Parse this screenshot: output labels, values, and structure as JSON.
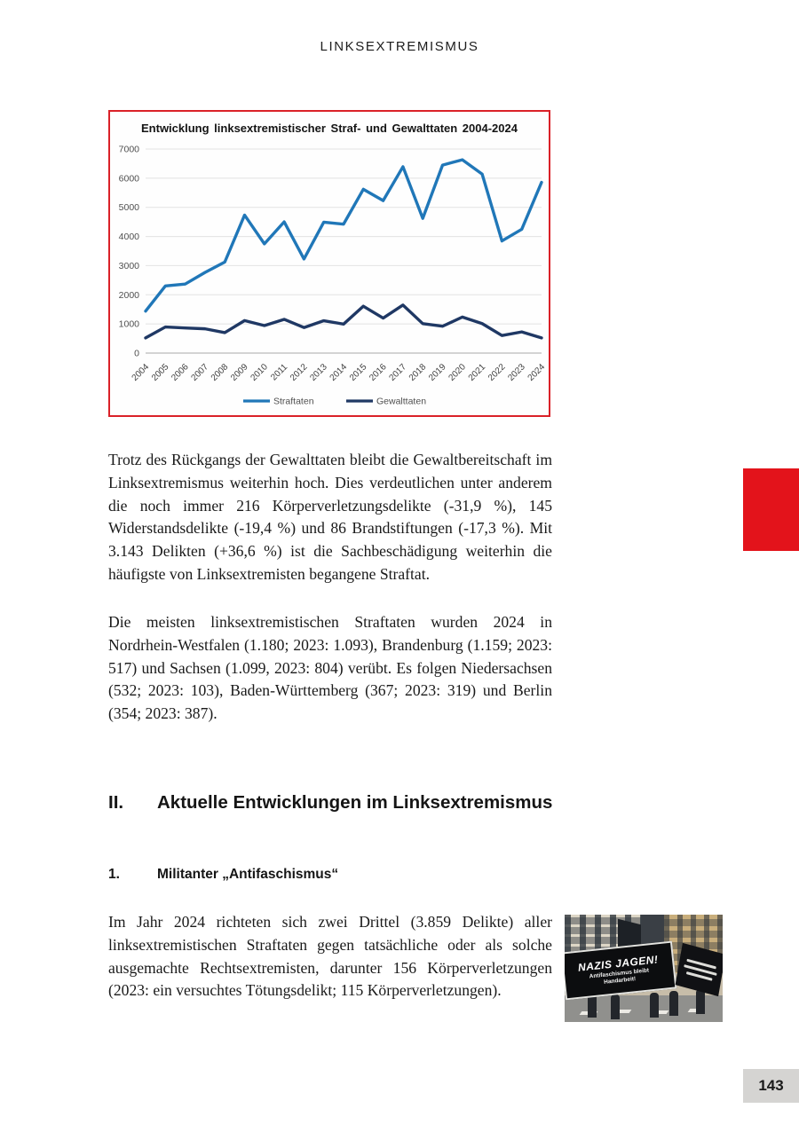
{
  "page": {
    "header": "LINKSEXTREMISMUS",
    "page_number": "143"
  },
  "chart_data": {
    "type": "line",
    "title": "Entwicklung linksextremistischer Straf- und Gewalttaten 2004-2024",
    "categories": [
      "2004",
      "2005",
      "2006",
      "2007",
      "2008",
      "2009",
      "2010",
      "2011",
      "2012",
      "2013",
      "2014",
      "2015",
      "2016",
      "2017",
      "2018",
      "2019",
      "2020",
      "2021",
      "2022",
      "2023",
      "2024"
    ],
    "series": [
      {
        "name": "Straftaten",
        "color": "#2077b8",
        "values": [
          1440,
          2305,
          2369,
          2765,
          3124,
          4734,
          3747,
          4502,
          3229,
          4491,
          4424,
          5620,
          5230,
          6393,
          4622,
          6449,
          6632,
          6140,
          3847,
          4248,
          5857
        ]
      },
      {
        "name": "Gewalttaten",
        "color": "#1f3864",
        "values": [
          521,
          896,
          862,
          833,
          701,
          1115,
          944,
          1157,
          876,
          1110,
          995,
          1608,
          1201,
          1648,
          1010,
          921,
          1237,
          1012,
          602,
          727,
          520
        ]
      }
    ],
    "ylim": [
      0,
      7000
    ],
    "yticks": [
      0,
      1000,
      2000,
      3000,
      4000,
      5000,
      6000,
      7000
    ],
    "grid": true,
    "legend_position": "bottom"
  },
  "paragraphs": {
    "p1": "Trotz des Rückgangs der Gewalttaten bleibt die Gewaltbereitschaft im Linksextremismus weiterhin hoch. Dies verdeutlichen unter anderem die noch immer 216 Körperverletzungsdelikte (-31,9 %), 145 Widerstandsdelikte (-19,4 %) und 86 Brandstiftungen (-17,3 %). Mit 3.143 Delikten (+36,6 %) ist die Sachbeschädigung weiterhin die häufigste von Linksextremisten begangene Straftat.",
    "p2": "Die meisten linksextremistischen Straftaten wurden 2024 in Nordrhein-Westfalen (1.180; 2023: 1.093), Brandenburg (1.159; 2023: 517) und Sachsen (1.099, 2023: 804) verübt. Es folgen Niedersachsen (532; 2023: 103), Baden-Württemberg (367; 2023: 319) und Berlin (354; 2023: 387).",
    "p3": "Im Jahr 2024 richteten sich zwei Drittel (3.859 Delikte) aller linksextremistischen Straftaten gegen tatsächliche oder als solche ausgemachte Rechtsextremisten, darunter 156 Körperverletzungen (2023: ein versuchtes Tötungsdelikt; 115 Körperverletzungen)."
  },
  "section": {
    "number": "II.",
    "title": "Aktuelle Entwicklungen im Linksextremismus"
  },
  "subsection": {
    "number": "1.",
    "title": "Militanter „Antifaschismus“"
  },
  "photo": {
    "banner_line1": "NAZIS JAGEN!",
    "banner_line2": "Antifaschismus bleibt",
    "banner_line3": "Handarbeit!"
  },
  "colors": {
    "chart_border_red": "#da2128",
    "tab_red": "#e3131b",
    "pagenum_bg": "#d5d4d2",
    "straftaten_blue": "#2077b8",
    "gewalttaten_navy": "#1f3864"
  }
}
